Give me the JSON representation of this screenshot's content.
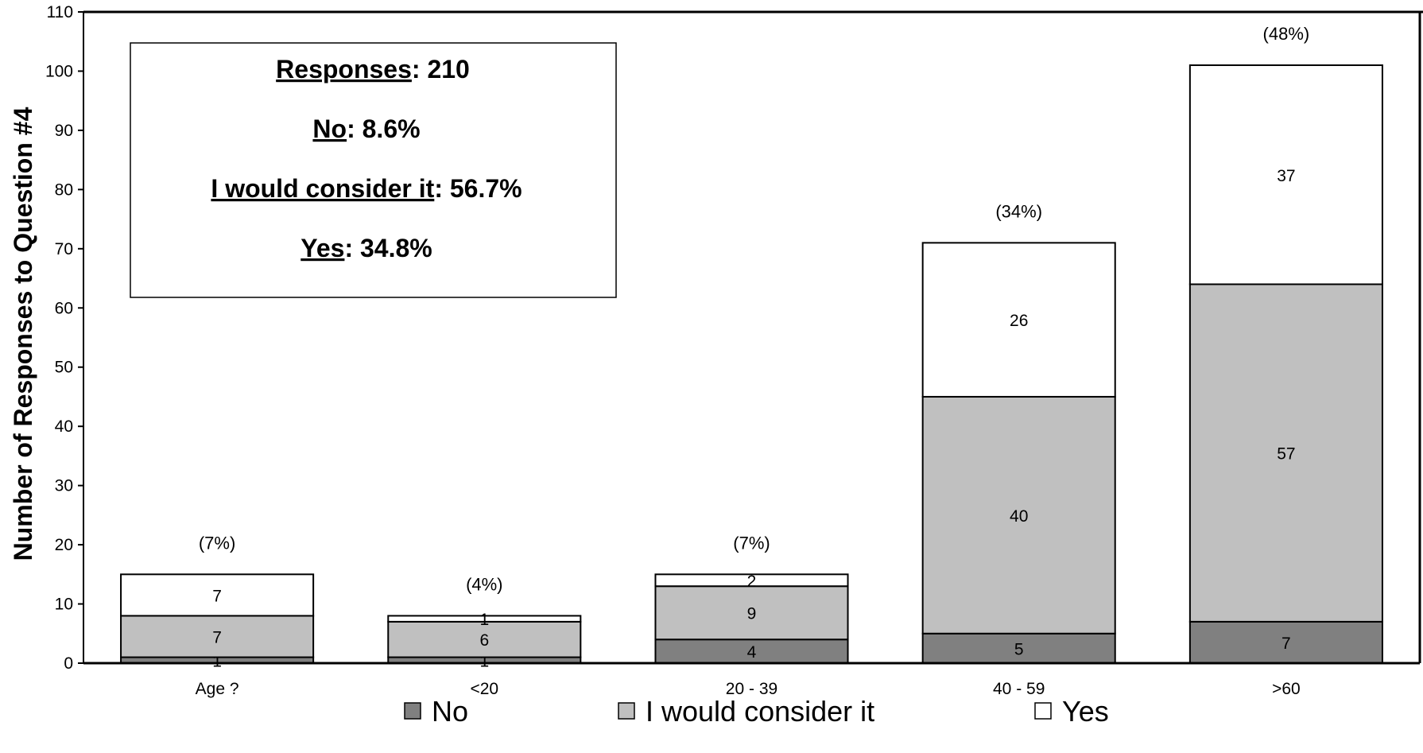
{
  "chart_data": {
    "type": "bar",
    "stacked": true,
    "ylabel": "Number of Responses to Question #4",
    "ylim": [
      0,
      110
    ],
    "yticks": [
      0,
      10,
      20,
      30,
      40,
      50,
      60,
      70,
      80,
      90,
      100,
      110
    ],
    "categories": [
      "Age ?",
      "<20",
      "20 - 39",
      "40 - 59",
      ">60"
    ],
    "series": [
      {
        "name": "No",
        "color": "#808080",
        "values": [
          1,
          1,
          4,
          5,
          7
        ]
      },
      {
        "name": "I would consider it",
        "color": "#c0c0c0",
        "values": [
          7,
          6,
          9,
          40,
          57
        ]
      },
      {
        "name": "Yes",
        "color": "#ffffff",
        "values": [
          7,
          1,
          2,
          26,
          37
        ]
      }
    ],
    "top_labels": [
      "(7%)",
      "(4%)",
      "(7%)",
      "(34%)",
      "(48%)"
    ],
    "legend_position": "bottom",
    "grid": false
  },
  "summary_box": {
    "responses_label": "Responses",
    "responses_value": "210",
    "no_label": "No",
    "no_value": "8.6%",
    "consider_label": "I would consider it",
    "consider_value": "56.7%",
    "yes_label": "Yes",
    "yes_value": "34.8%"
  }
}
